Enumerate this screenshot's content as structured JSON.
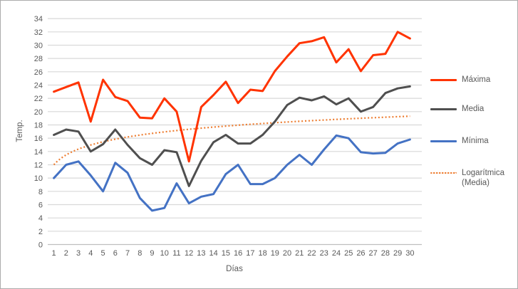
{
  "window": {
    "background": "#FFFFFF",
    "border_color": "#ABABAB"
  },
  "axis_style": {
    "text_color": "#595959",
    "gridline_color": "#D9D9D9",
    "axis_line_color": "#BFBFBF"
  },
  "chart_data": {
    "type": "line",
    "title": "",
    "xlabel": "Días",
    "ylabel": "Temp.",
    "x": [
      1,
      2,
      3,
      4,
      5,
      6,
      7,
      8,
      9,
      10,
      11,
      12,
      13,
      14,
      15,
      16,
      17,
      18,
      19,
      20,
      21,
      22,
      23,
      24,
      25,
      26,
      27,
      28,
      29,
      30
    ],
    "ylim": [
      0,
      34
    ],
    "ytick_step": 2,
    "grid": true,
    "legend_position": "right",
    "series": [
      {
        "name": "Máxima",
        "color": "#FF3300",
        "values": [
          23,
          23.7,
          24.4,
          18.5,
          24.8,
          22.2,
          21.6,
          19.1,
          19,
          22,
          20,
          12.5,
          20.7,
          22.5,
          24.5,
          21.3,
          23.3,
          23.1,
          26.1,
          28.3,
          30.3,
          30.6,
          31.2,
          27.4,
          29.4,
          26.1,
          28.5,
          28.7,
          32,
          31
        ]
      },
      {
        "name": "Media",
        "color": "#4F4F4F",
        "values": [
          16.5,
          17.3,
          17,
          14,
          15.1,
          17.3,
          15,
          13,
          12,
          14.2,
          13.9,
          8.8,
          12.6,
          15.4,
          16.5,
          15.2,
          15.2,
          16.5,
          18.5,
          21,
          22.1,
          21.7,
          22.3,
          21.1,
          22,
          20,
          20.7,
          22.8,
          23.5,
          23.8
        ]
      },
      {
        "name": "Mínima",
        "color": "#4472C4",
        "values": [
          10,
          12,
          12.5,
          10.4,
          8,
          12.3,
          10.8,
          7,
          5.1,
          5.5,
          9.2,
          6.2,
          7.2,
          7.6,
          10.6,
          12,
          9.1,
          9.1,
          10,
          12,
          13.5,
          12,
          14.3,
          16.4,
          16,
          13.9,
          13.7,
          13.8,
          15.2,
          15.8
        ]
      }
    ],
    "trendline": {
      "name": "Logarítmica (Media)",
      "type": "logarithmic",
      "color": "#ED7D31",
      "formula_a": 12.0,
      "formula_b": 2.15,
      "x_start": 1,
      "x_end": 30
    }
  }
}
